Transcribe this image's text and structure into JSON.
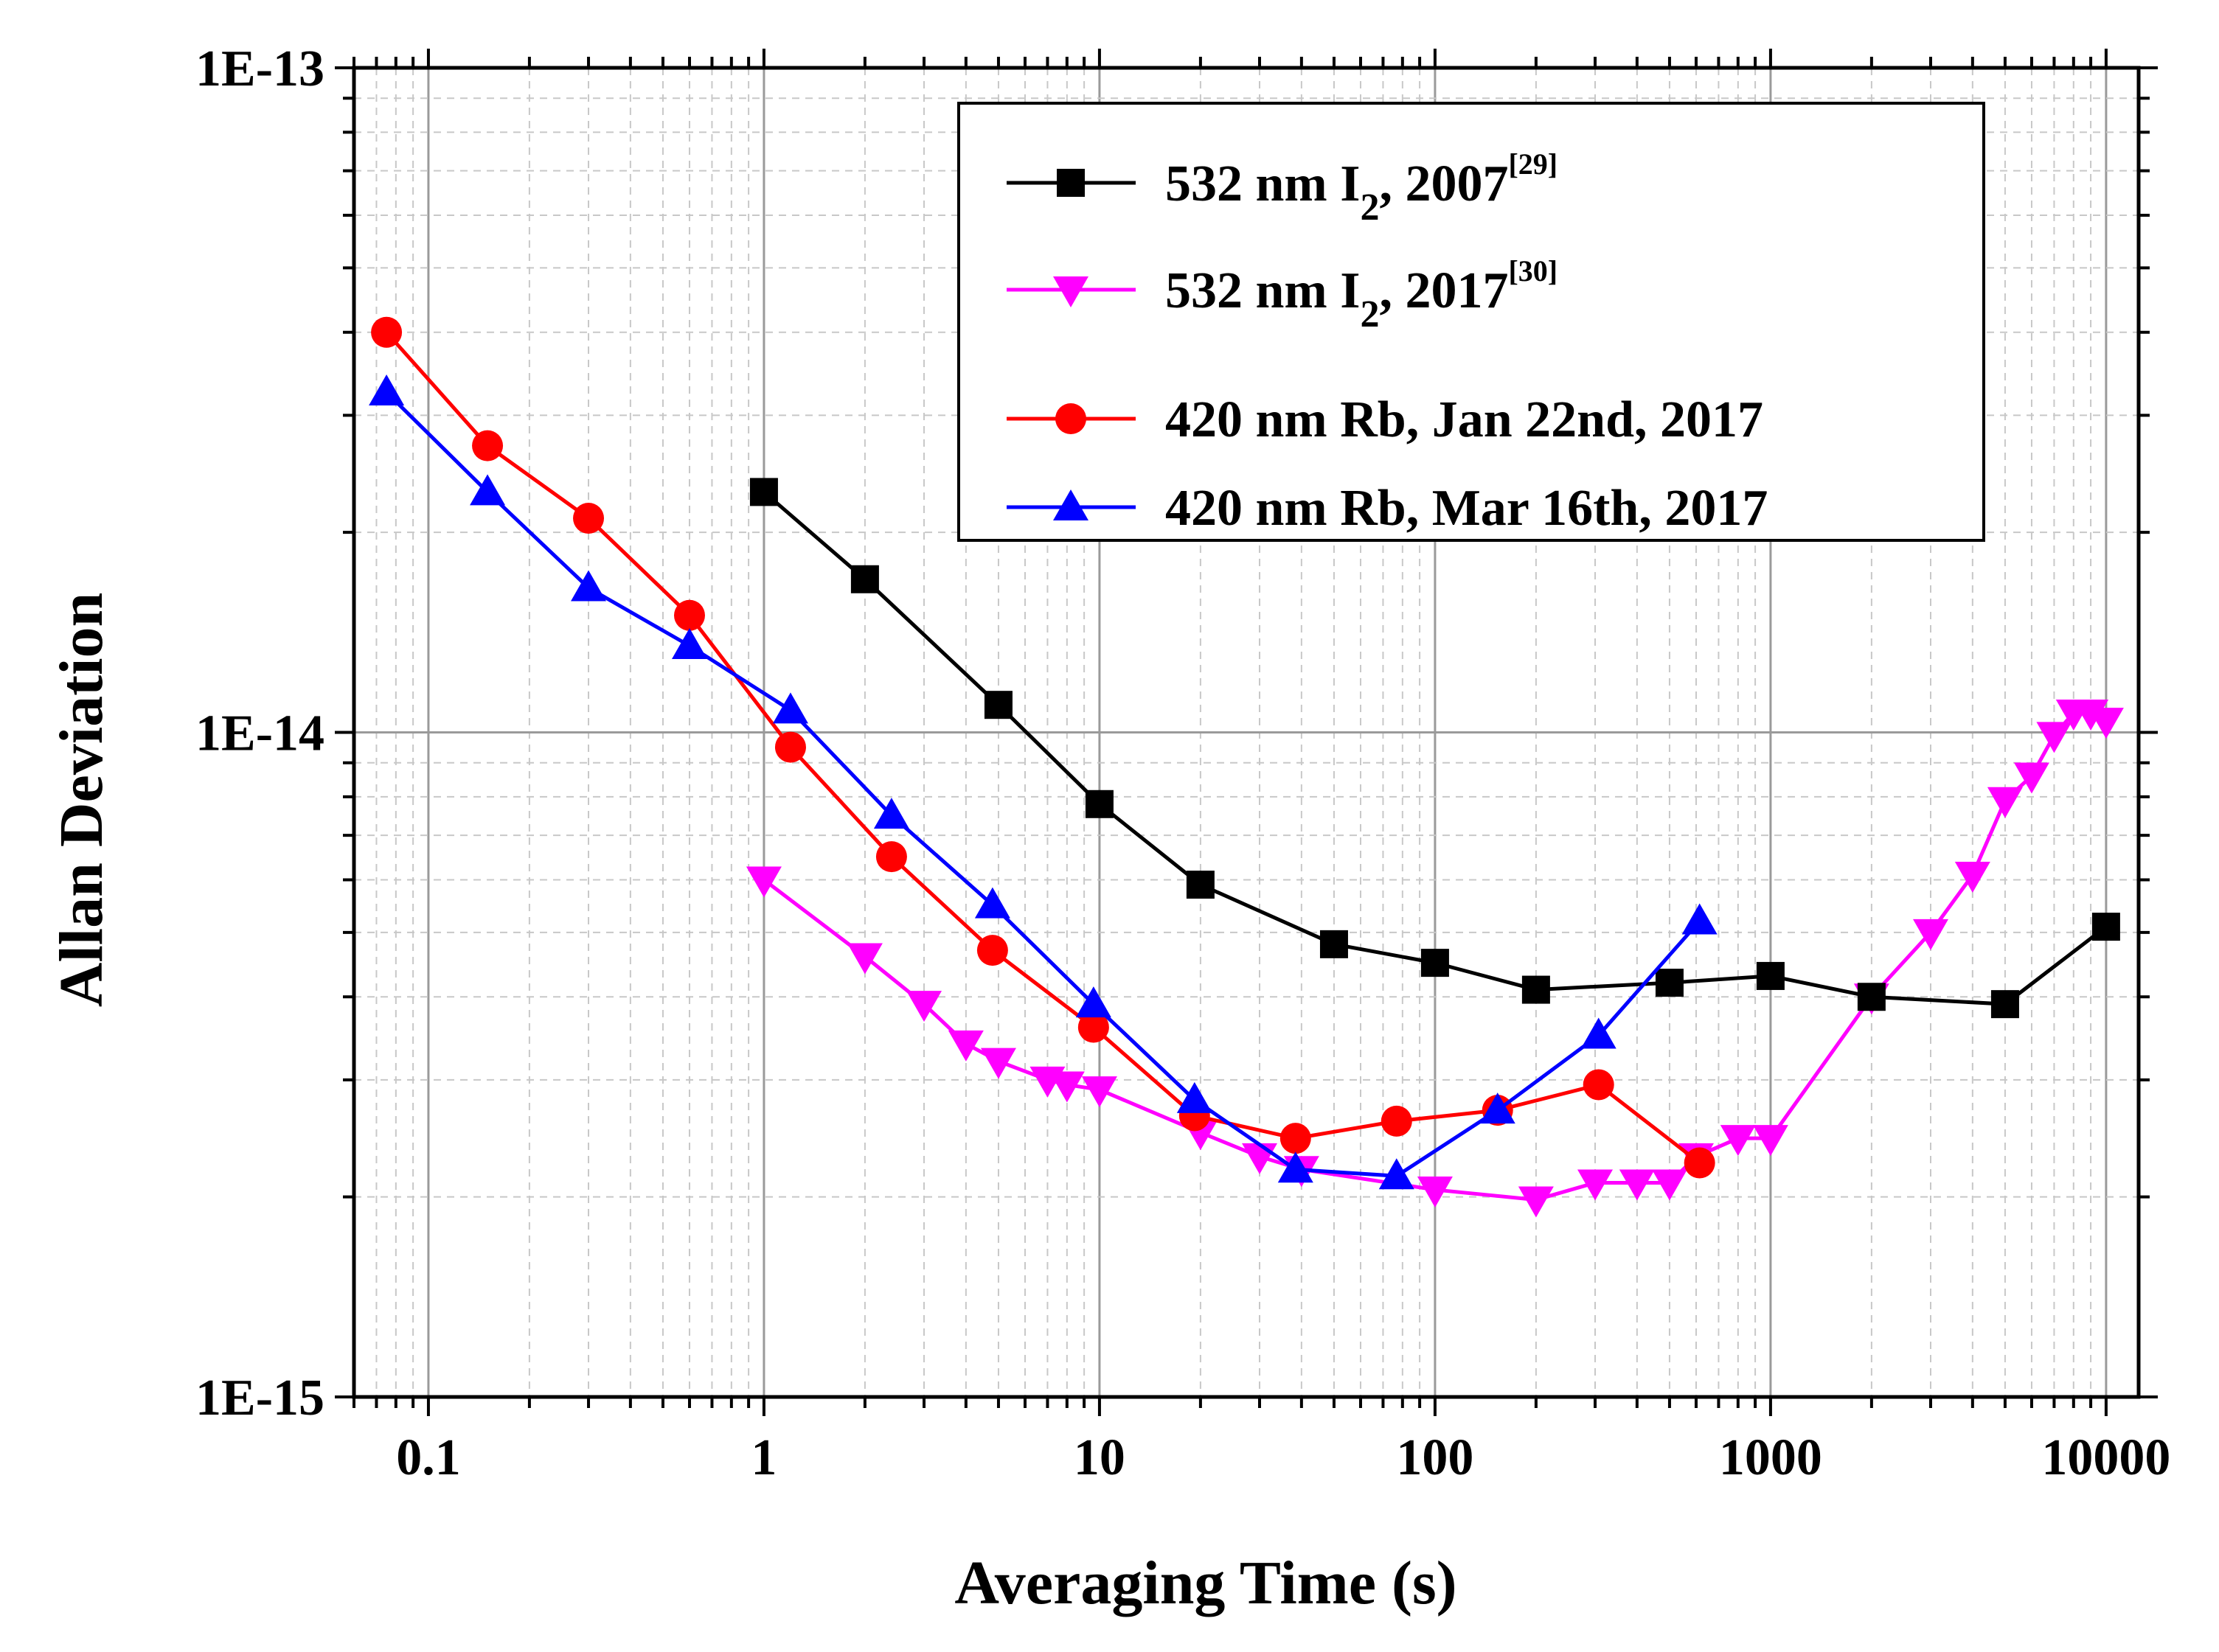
{
  "chart_data": {
    "type": "line",
    "title": "",
    "xlabel": "Averaging Time (s)",
    "ylabel": "Allan Deviation",
    "xscale": "log",
    "yscale": "log",
    "xlim": [
      0.06,
      12500
    ],
    "ylim": [
      1e-15,
      1e-13
    ],
    "grid": true,
    "legend_position": "top-right",
    "x_tick_labels": [
      "0.1",
      "1",
      "10",
      "100",
      "1000",
      "10000"
    ],
    "y_tick_labels": [
      "1E-15",
      "1E-14",
      "1E-13"
    ],
    "series": [
      {
        "label_main": "532 nm I",
        "label_sub": "2",
        "label_tail": ", 2007",
        "label_sup": "[29]",
        "color": "#000000",
        "marker": "square",
        "x": [
          1,
          2,
          5,
          10,
          20,
          50,
          100,
          200,
          500,
          1000,
          2000,
          5000,
          10000
        ],
        "y": [
          2.3e-14,
          1.7e-14,
          1.1e-14,
          7.8e-15,
          5.9e-15,
          4.8e-15,
          4.5e-15,
          4.1e-15,
          4.2e-15,
          4.3e-15,
          4e-15,
          3.9e-15,
          5.1e-15
        ]
      },
      {
        "label_main": "532 nm I",
        "label_sub": "2",
        "label_tail": ", 2017",
        "label_sup": "[30]",
        "color": "#ff00ff",
        "marker": "triangle-down",
        "x": [
          1,
          2,
          3,
          4,
          5,
          7,
          8,
          10,
          20,
          30,
          40,
          100,
          200,
          300,
          400,
          500,
          600,
          800,
          1000,
          2000,
          3000,
          4000,
          5000,
          6000,
          7000,
          8000,
          9000,
          10000
        ],
        "y": [
          6e-15,
          4.6e-15,
          3.9e-15,
          3.4e-15,
          3.2e-15,
          3e-15,
          2.95e-15,
          2.9e-15,
          2.5e-15,
          2.3e-15,
          2.2e-15,
          2.05e-15,
          1.98e-15,
          2.1e-15,
          2.1e-15,
          2.1e-15,
          2.3e-15,
          2.45e-15,
          2.45e-15,
          4e-15,
          5e-15,
          6.1e-15,
          7.9e-15,
          8.6e-15,
          9.9e-15,
          1.07e-14,
          1.07e-14,
          1.04e-14
        ]
      },
      {
        "label_main": "420 nm Rb, Jan 22nd, 2017",
        "color": "#ff0000",
        "marker": "circle",
        "x": [
          0.075,
          0.15,
          0.3,
          0.6,
          1.2,
          2.4,
          4.8,
          9.6,
          19.2,
          38.4,
          76.8,
          153.6,
          307.2,
          614.4
        ],
        "y": [
          4e-14,
          2.7e-14,
          2.1e-14,
          1.5e-14,
          9.5e-15,
          6.5e-15,
          4.7e-15,
          3.6e-15,
          2.65e-15,
          2.45e-15,
          2.6e-15,
          2.7e-15,
          2.95e-15,
          2.25e-15
        ]
      },
      {
        "label_main": "420 nm Rb, Mar 16th, 2017",
        "color": "#0000ff",
        "marker": "triangle-up",
        "x": [
          0.075,
          0.15,
          0.3,
          0.6,
          1.2,
          2.4,
          4.8,
          9.6,
          19.2,
          38.4,
          76.8,
          153.6,
          307.2,
          614.4
        ],
        "y": [
          3.25e-14,
          2.3e-14,
          1.65e-14,
          1.35e-14,
          1.08e-14,
          7.5e-15,
          5.5e-15,
          3.9e-15,
          2.8e-15,
          2.2e-15,
          2.15e-15,
          2.7e-15,
          3.5e-15,
          5.2e-15
        ]
      }
    ]
  }
}
